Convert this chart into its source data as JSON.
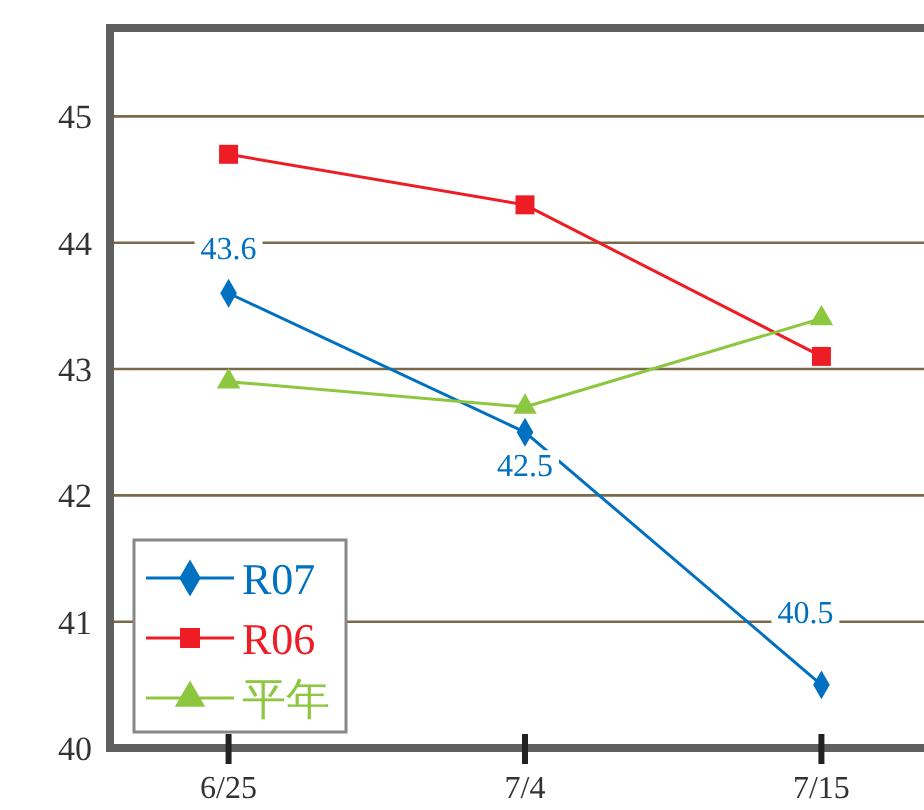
{
  "chart_data": {
    "type": "line",
    "categories": [
      "6/25",
      "7/4",
      "7/15"
    ],
    "series": [
      {
        "name": "R07",
        "color": "#0070c0",
        "marker": "diamond",
        "values": [
          43.6,
          42.5,
          40.5
        ],
        "value_labels": [
          "43.6",
          "42.5",
          "40.5"
        ]
      },
      {
        "name": "R06",
        "color": "#ee1c25",
        "marker": "square",
        "values": [
          44.7,
          44.3,
          43.1
        ]
      },
      {
        "name": "平年",
        "color": "#8dc63f",
        "marker": "triangle",
        "values": [
          42.9,
          42.7,
          43.4
        ]
      }
    ],
    "ylim": [
      40,
      45.7
    ],
    "yticks": [
      40,
      41,
      42,
      43,
      44,
      45
    ],
    "grid": "y",
    "legend": "bottom left"
  }
}
